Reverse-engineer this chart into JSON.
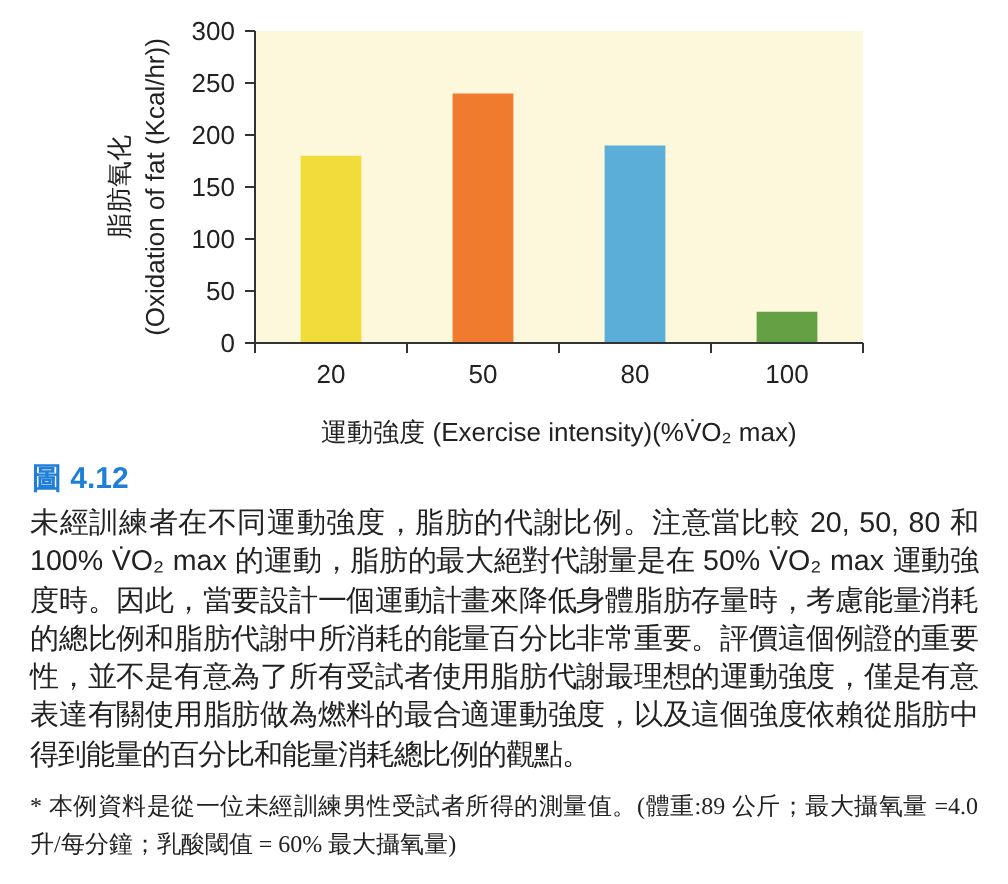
{
  "chart_data": {
    "type": "bar",
    "categories": [
      "20",
      "50",
      "80",
      "100"
    ],
    "values": [
      180,
      240,
      190,
      30
    ],
    "colors": [
      "#f2dc3c",
      "#f07a2e",
      "#5aaed8",
      "#64a044"
    ],
    "xlabel": "運動強度 (Exercise intensity)(%V̇O₂ max)",
    "ylabel": "脂肪氧化\n(Oxidation of fat (Kcal/hr))",
    "ylim": [
      0,
      300
    ],
    "yticks": [
      0,
      50,
      100,
      150,
      200,
      250,
      300
    ],
    "grid": false,
    "annotations": [
      "圖 4.12",
      "未經訓練者在不同運動強度，脂肪的代謝比例。注意當比較 20, 50, 80 和 100% V̇O₂ max 的運動，脂肪的最大絕對代謝量是在 50% V̇O₂ max 運動強度時。因此，當要設計一個運動計畫來降低身體脂肪存量時，考慮能量消耗的總比例和脂肪代謝中所消耗的能量百分比非常重要。評價這個例證的重要性，並不是有意為了所有受試者使用脂肪代謝最理想的運動強度，僅是有意表達有關使用脂肪做為燃料的最合適運動強度，以及這個強度依賴從脂肪中得到能量的百分比和能量消耗總比例的觀點。",
      "* 本例資料是從一位未經訓練男性受試者所得的測量值。(體重:89 公斤；最大攝氧量 =4.0 升/每分鐘；乳酸閾值 = 60% 最大攝氧量)"
    ]
  }
}
